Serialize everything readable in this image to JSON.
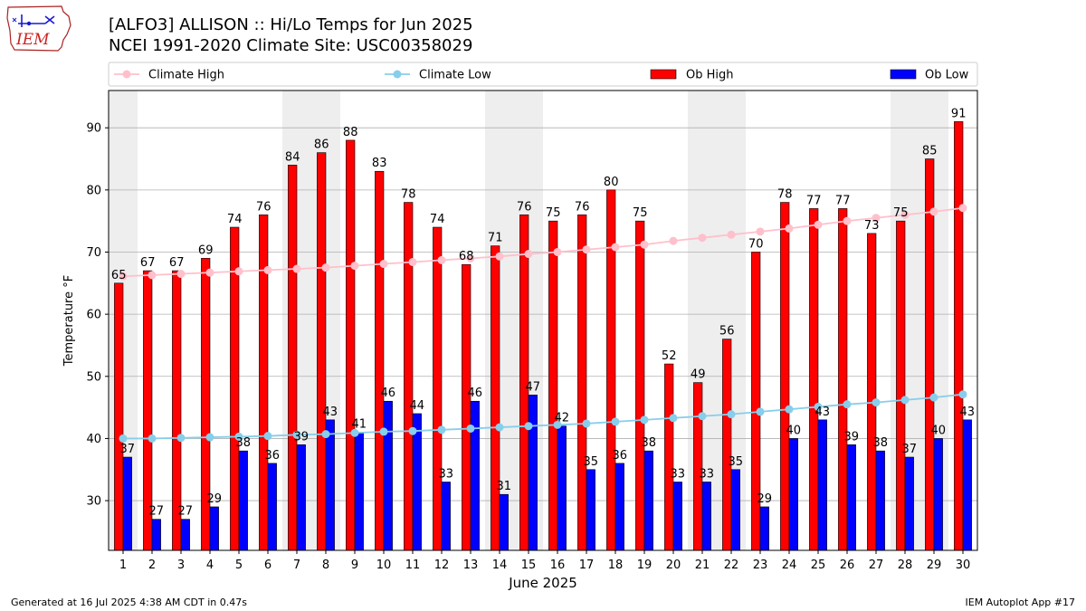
{
  "header": {
    "title_line1": "[ALFO3] ALLISON :: Hi/Lo Temps for Jun 2025",
    "title_line2": "NCEI 1991-2020 Climate Site: USC00358029"
  },
  "logo": {
    "text": "IEM"
  },
  "footer": {
    "left": "Generated at 16 Jul 2025 4:38 AM CDT in 0.47s",
    "right": "IEM Autoplot App #17"
  },
  "colors": {
    "ob_high": "#ff0000",
    "ob_low": "#0000ff",
    "climate_high": "#ffc0cb",
    "climate_low": "#87ceeb",
    "weekend_shade": "#eeeeee",
    "grid": "#b0b0b0"
  },
  "chart_data": {
    "type": "bar",
    "xlabel": "June 2025",
    "ylabel": "Temperature °F",
    "ylim": [
      22,
      96
    ],
    "yticks": [
      30,
      40,
      50,
      60,
      70,
      80,
      90
    ],
    "grid": "horizontal",
    "legend_placement": "top",
    "categories": [
      "1",
      "2",
      "3",
      "4",
      "5",
      "6",
      "7",
      "8",
      "9",
      "10",
      "11",
      "12",
      "13",
      "14",
      "15",
      "16",
      "17",
      "18",
      "19",
      "20",
      "21",
      "22",
      "23",
      "24",
      "25",
      "26",
      "27",
      "28",
      "29",
      "30"
    ],
    "shaded_days": [
      1,
      7,
      8,
      14,
      15,
      21,
      22,
      28,
      29
    ],
    "series": [
      {
        "name": "Climate High",
        "kind": "line",
        "values": [
          66.1,
          66.3,
          66.5,
          66.7,
          66.9,
          67.1,
          67.3,
          67.5,
          67.8,
          68.1,
          68.4,
          68.7,
          69.0,
          69.3,
          69.7,
          70.0,
          70.4,
          70.8,
          71.2,
          71.8,
          72.3,
          72.8,
          73.3,
          73.8,
          74.4,
          75.0,
          75.5,
          76.0,
          76.5,
          77.1
        ]
      },
      {
        "name": "Climate Low",
        "kind": "line",
        "values": [
          40.0,
          40.0,
          40.1,
          40.2,
          40.3,
          40.4,
          40.6,
          40.7,
          40.9,
          41.1,
          41.2,
          41.4,
          41.6,
          41.8,
          42.0,
          42.2,
          42.4,
          42.7,
          43.0,
          43.3,
          43.6,
          43.9,
          44.3,
          44.7,
          45.1,
          45.5,
          45.8,
          46.2,
          46.6,
          47.1
        ]
      },
      {
        "name": "Ob High",
        "kind": "bar",
        "values": [
          65,
          67,
          67,
          69,
          74,
          76,
          84,
          86,
          88,
          83,
          78,
          74,
          68,
          71,
          76,
          75,
          76,
          80,
          75,
          52,
          49,
          56,
          70,
          78,
          77,
          77,
          73,
          75,
          85,
          91
        ]
      },
      {
        "name": "Ob Low",
        "kind": "bar",
        "values": [
          37,
          27,
          27,
          29,
          38,
          36,
          39,
          43,
          41,
          46,
          44,
          33,
          46,
          31,
          47,
          42,
          35,
          36,
          38,
          33,
          33,
          35,
          29,
          40,
          43,
          39,
          38,
          37,
          40,
          43
        ]
      }
    ]
  }
}
